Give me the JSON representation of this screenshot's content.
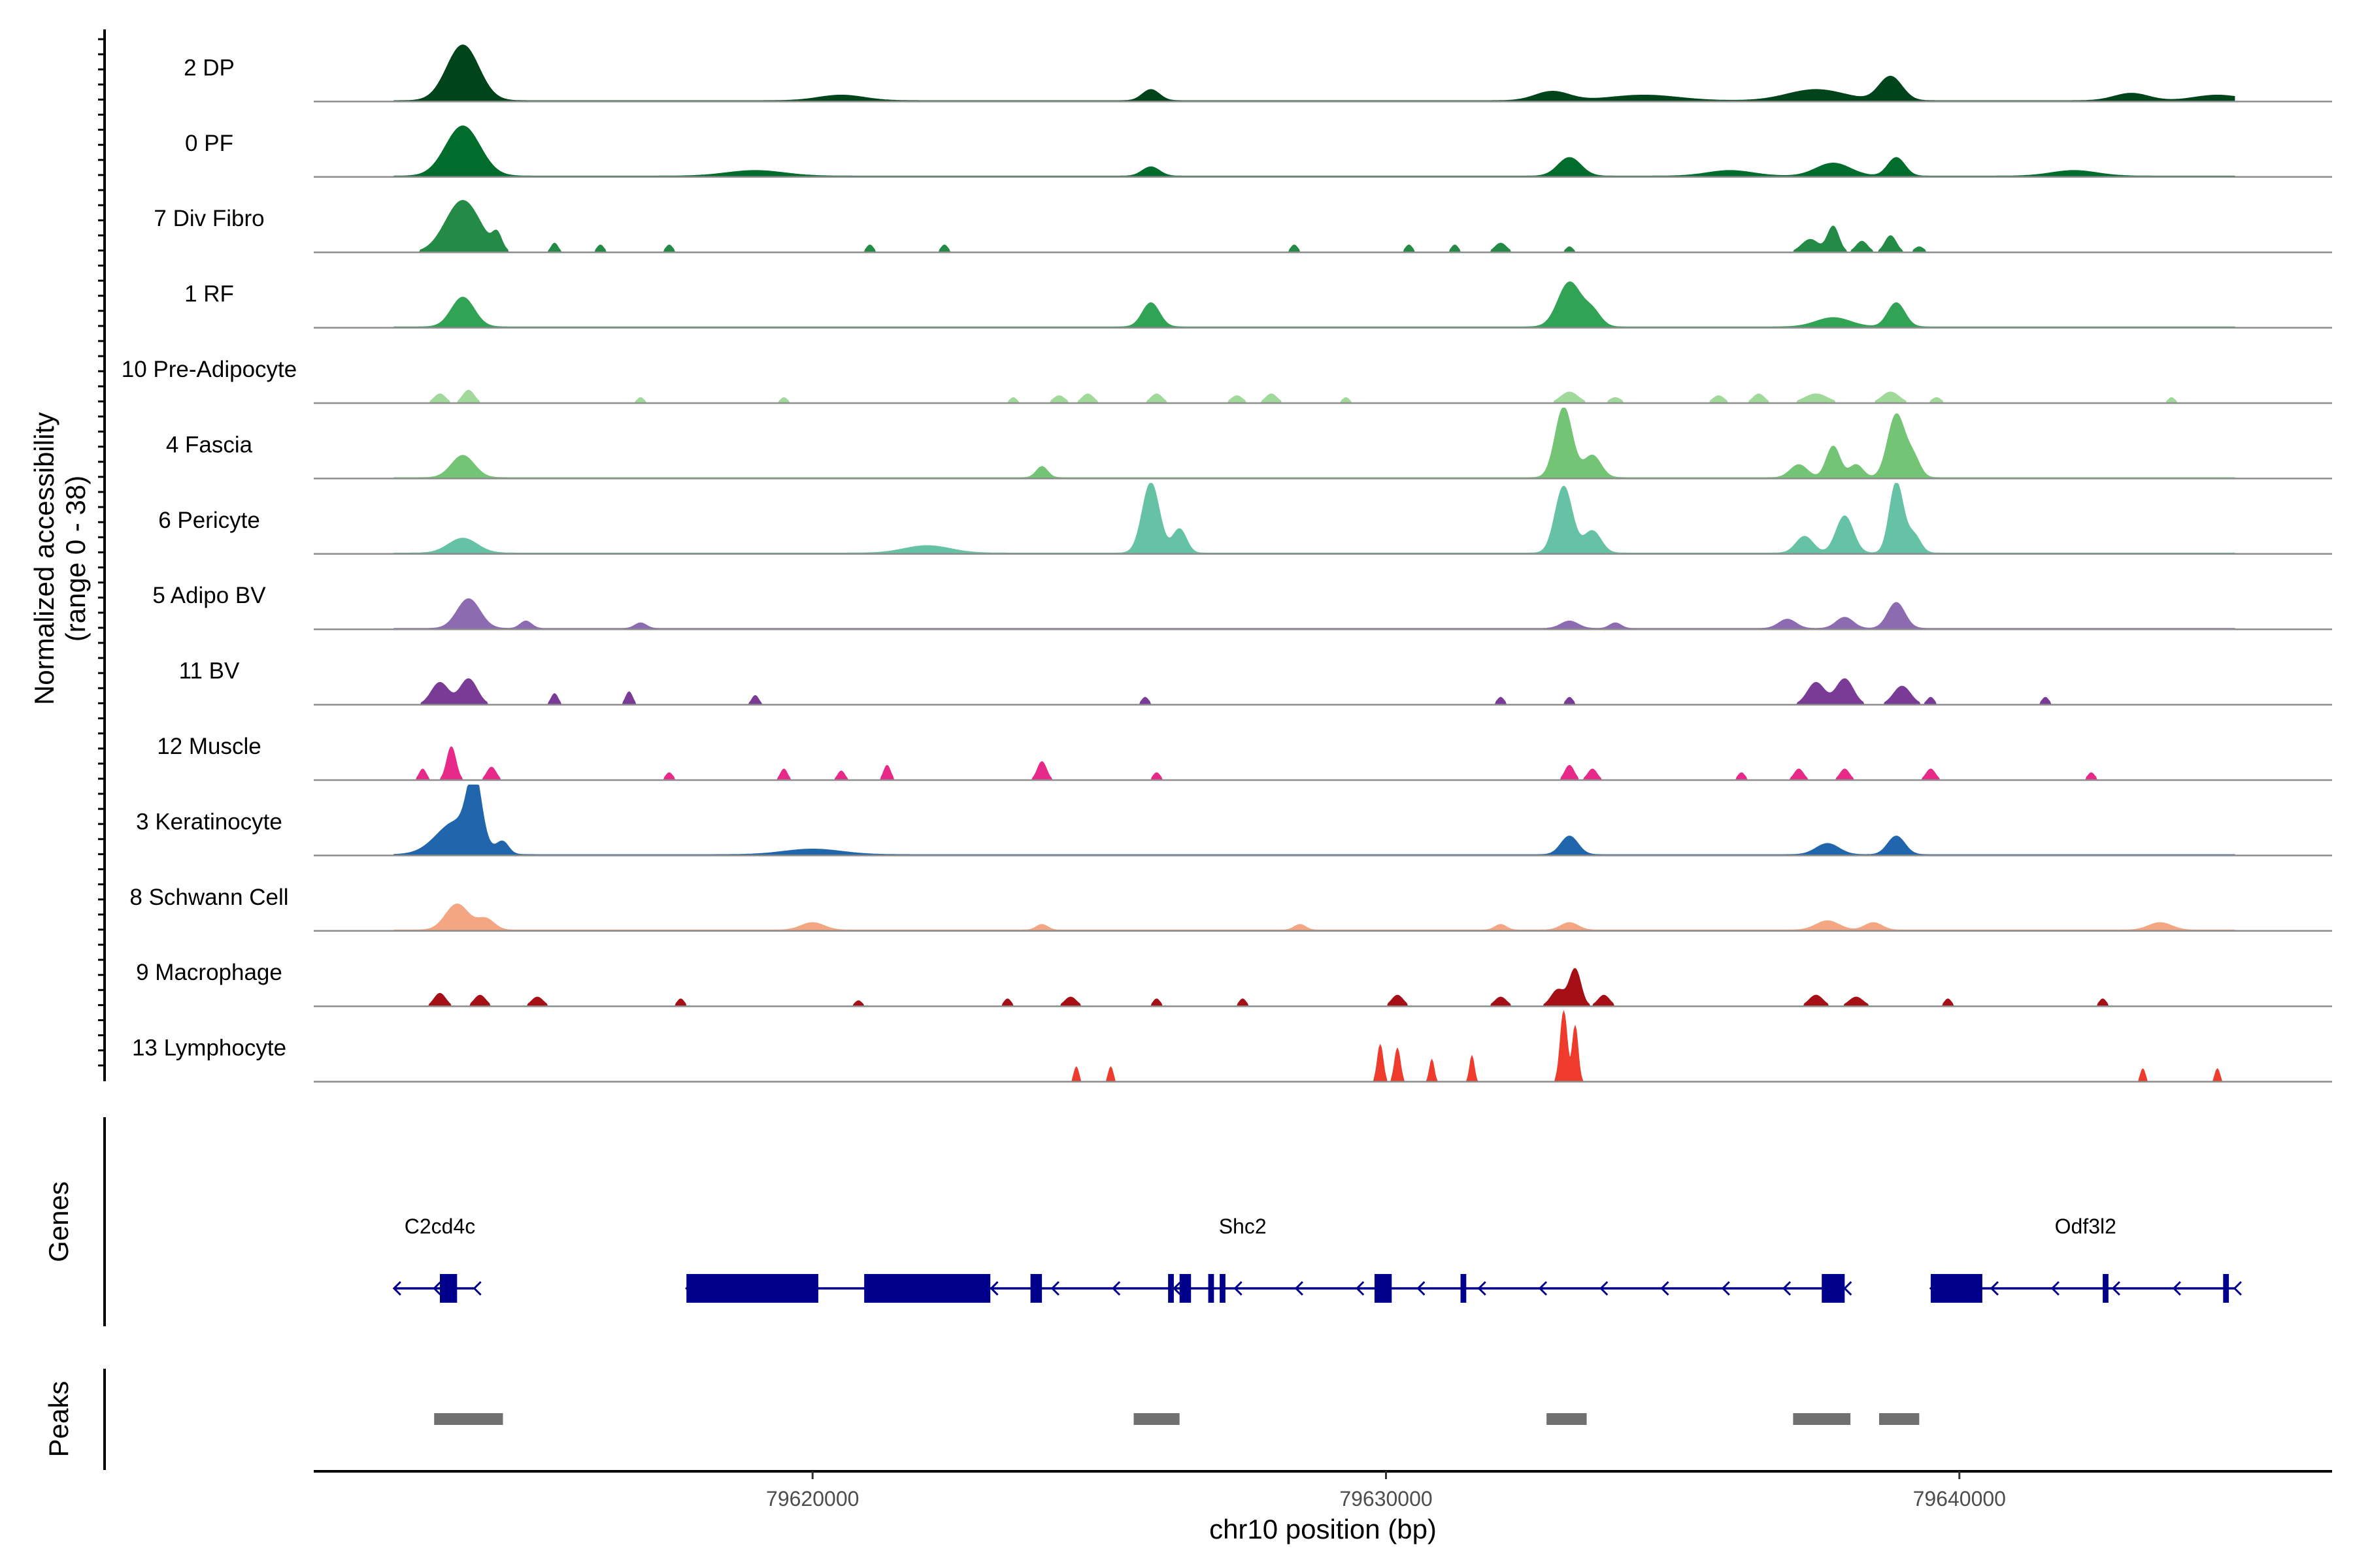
{
  "chart_data": {
    "type": "coverage_track",
    "chromosome": "chr10",
    "xlim": [
      79611300,
      79646500
    ],
    "y_axis_title_line1": "Normalized accessibility",
    "y_axis_title_line2": "(range 0 - 38)",
    "y_range": [
      0,
      38
    ],
    "x_axis_title": "chr10 position (bp)",
    "x_ticks": [
      79620000,
      79630000,
      79640000
    ],
    "x_tick_labels": [
      "79620000",
      "79630000",
      "79640000"
    ],
    "genes_panel_label": "Genes",
    "peaks_panel_label": "Peaks",
    "series": [
      {
        "name": "2 DP",
        "color": "#00441b",
        "peaks": [
          [
            79613900,
            30,
            280
          ],
          [
            79620500,
            3,
            400
          ],
          [
            79625900,
            6,
            150
          ],
          [
            79632900,
            5,
            300
          ],
          [
            79634500,
            3,
            600
          ],
          [
            79637500,
            6,
            500
          ],
          [
            79638800,
            13,
            200
          ],
          [
            79643000,
            4,
            300
          ],
          [
            79644500,
            3,
            400
          ]
        ]
      },
      {
        "name": "0 PF",
        "color": "#006d2c",
        "peaks": [
          [
            79613900,
            27,
            300
          ],
          [
            79619000,
            3,
            500
          ],
          [
            79625900,
            5,
            150
          ],
          [
            79633200,
            10,
            200
          ],
          [
            79636000,
            3,
            400
          ],
          [
            79637800,
            7,
            300
          ],
          [
            79638900,
            10,
            150
          ],
          [
            79642000,
            3,
            400
          ]
        ]
      },
      {
        "name": "7 Div Fibro",
        "color": "#238b45",
        "peaks": [
          [
            79613900,
            28,
            300
          ],
          [
            79614500,
            8,
            80
          ],
          [
            79615500,
            5,
            60
          ],
          [
            79616300,
            4,
            60
          ],
          [
            79617500,
            4,
            60
          ],
          [
            79621000,
            4,
            60
          ],
          [
            79622300,
            4,
            60
          ],
          [
            79628400,
            4,
            60
          ],
          [
            79630400,
            4,
            60
          ],
          [
            79631200,
            4,
            60
          ],
          [
            79632000,
            5,
            100
          ],
          [
            79633200,
            3,
            60
          ],
          [
            79637400,
            7,
            150
          ],
          [
            79637800,
            14,
            100
          ],
          [
            79638300,
            6,
            100
          ],
          [
            79638800,
            9,
            100
          ],
          [
            79639300,
            3,
            80
          ]
        ]
      },
      {
        "name": "1 RF",
        "color": "#31a354",
        "peaks": [
          [
            79613900,
            16,
            200
          ],
          [
            79625900,
            13,
            150
          ],
          [
            79633200,
            24,
            200
          ],
          [
            79633600,
            8,
            150
          ],
          [
            79637800,
            5,
            300
          ],
          [
            79638900,
            13,
            150
          ]
        ]
      },
      {
        "name": "10 Pre-Adipocyte",
        "color": "#a1d99b",
        "peaks": [
          [
            79612500,
            3,
            60
          ],
          [
            79613500,
            5,
            100
          ],
          [
            79614000,
            7,
            100
          ],
          [
            79617000,
            3,
            60
          ],
          [
            79619500,
            3,
            60
          ],
          [
            79623500,
            3,
            60
          ],
          [
            79624300,
            4,
            100
          ],
          [
            79624800,
            5,
            100
          ],
          [
            79626000,
            5,
            100
          ],
          [
            79627400,
            4,
            100
          ],
          [
            79628000,
            5,
            100
          ],
          [
            79629300,
            3,
            60
          ],
          [
            79633200,
            6,
            150
          ],
          [
            79634000,
            3,
            100
          ],
          [
            79635800,
            4,
            100
          ],
          [
            79636500,
            5,
            100
          ],
          [
            79637500,
            5,
            200
          ],
          [
            79638800,
            6,
            150
          ],
          [
            79639600,
            3,
            80
          ],
          [
            79643700,
            3,
            60
          ]
        ]
      },
      {
        "name": "4 Fascia",
        "color": "#74c476",
        "peaks": [
          [
            79613900,
            12,
            200
          ],
          [
            79624000,
            6,
            100
          ],
          [
            79633100,
            38,
            150
          ],
          [
            79633600,
            12,
            150
          ],
          [
            79637200,
            7,
            150
          ],
          [
            79637800,
            17,
            120
          ],
          [
            79638200,
            7,
            120
          ],
          [
            79638900,
            34,
            150
          ],
          [
            79639200,
            10,
            120
          ]
        ]
      },
      {
        "name": "6 Pericyte",
        "color": "#66c2a4",
        "peaks": [
          [
            79613900,
            8,
            250
          ],
          [
            79622000,
            4,
            400
          ],
          [
            79625900,
            38,
            150
          ],
          [
            79626400,
            13,
            120
          ],
          [
            79633100,
            36,
            150
          ],
          [
            79633600,
            12,
            150
          ],
          [
            79637300,
            9,
            150
          ],
          [
            79638000,
            20,
            150
          ],
          [
            79638900,
            38,
            120
          ],
          [
            79639200,
            10,
            120
          ]
        ]
      },
      {
        "name": "5 Adipo BV",
        "color": "#8c6bb1",
        "peaks": [
          [
            79614000,
            16,
            200
          ],
          [
            79615000,
            4,
            100
          ],
          [
            79617000,
            3,
            100
          ],
          [
            79633200,
            4,
            150
          ],
          [
            79634000,
            3,
            100
          ],
          [
            79637000,
            5,
            150
          ],
          [
            79638000,
            6,
            150
          ],
          [
            79638900,
            14,
            150
          ]
        ]
      },
      {
        "name": "11 BV",
        "color": "#7a3b96",
        "peaks": [
          [
            79613500,
            12,
            150
          ],
          [
            79614000,
            14,
            150
          ],
          [
            79615500,
            6,
            60
          ],
          [
            79616800,
            7,
            60
          ],
          [
            79619000,
            5,
            60
          ],
          [
            79625800,
            4,
            60
          ],
          [
            79632000,
            4,
            60
          ],
          [
            79633200,
            4,
            60
          ],
          [
            79637500,
            12,
            150
          ],
          [
            79638000,
            14,
            150
          ],
          [
            79639000,
            10,
            150
          ],
          [
            79639500,
            4,
            60
          ],
          [
            79641500,
            4,
            60
          ]
        ]
      },
      {
        "name": "12 Muscle",
        "color": "#e7298a",
        "peaks": [
          [
            79612400,
            6,
            60
          ],
          [
            79613200,
            6,
            60
          ],
          [
            79613700,
            18,
            80
          ],
          [
            79614400,
            7,
            80
          ],
          [
            79617500,
            4,
            60
          ],
          [
            79619500,
            6,
            60
          ],
          [
            79620500,
            5,
            60
          ],
          [
            79621300,
            8,
            60
          ],
          [
            79624000,
            10,
            80
          ],
          [
            79626000,
            4,
            60
          ],
          [
            79633200,
            8,
            80
          ],
          [
            79633600,
            6,
            80
          ],
          [
            79636200,
            4,
            60
          ],
          [
            79637200,
            6,
            80
          ],
          [
            79638000,
            6,
            80
          ],
          [
            79639500,
            6,
            80
          ],
          [
            79642300,
            4,
            60
          ]
        ]
      },
      {
        "name": "3 Keratinocyte",
        "color": "#2166ac",
        "peaks": [
          [
            79613800,
            18,
            350
          ],
          [
            79614100,
            34,
            120
          ],
          [
            79614600,
            6,
            100
          ],
          [
            79620000,
            3,
            500
          ],
          [
            79633200,
            10,
            150
          ],
          [
            79637700,
            6,
            200
          ],
          [
            79638900,
            10,
            150
          ]
        ]
      },
      {
        "name": "8 Schwann Cell",
        "color": "#f4a582",
        "peaks": [
          [
            79613800,
            14,
            200
          ],
          [
            79614300,
            6,
            150
          ],
          [
            79620000,
            4,
            200
          ],
          [
            79624000,
            3,
            100
          ],
          [
            79628500,
            3,
            100
          ],
          [
            79632000,
            3,
            100
          ],
          [
            79633200,
            4,
            150
          ],
          [
            79637700,
            5,
            200
          ],
          [
            79638500,
            4,
            150
          ],
          [
            79643500,
            4,
            200
          ]
        ]
      },
      {
        "name": "9 Macrophage",
        "color": "#a50f15",
        "peaks": [
          [
            79612400,
            3,
            60
          ],
          [
            79613500,
            7,
            100
          ],
          [
            79614200,
            6,
            100
          ],
          [
            79615200,
            5,
            100
          ],
          [
            79617700,
            4,
            60
          ],
          [
            79620800,
            3,
            60
          ],
          [
            79623400,
            4,
            60
          ],
          [
            79624500,
            5,
            100
          ],
          [
            79626000,
            4,
            60
          ],
          [
            79627500,
            4,
            60
          ],
          [
            79630200,
            6,
            100
          ],
          [
            79632000,
            5,
            100
          ],
          [
            79633000,
            9,
            120
          ],
          [
            79633300,
            20,
            100
          ],
          [
            79633800,
            6,
            100
          ],
          [
            79637500,
            6,
            120
          ],
          [
            79638200,
            5,
            120
          ],
          [
            79639800,
            4,
            60
          ],
          [
            79642500,
            4,
            60
          ]
        ]
      },
      {
        "name": "13 Lymphocyte",
        "color": "#ef3b2c",
        "peaks": [
          [
            79624600,
            8,
            40
          ],
          [
            79625200,
            8,
            40
          ],
          [
            79629900,
            20,
            50
          ],
          [
            79630200,
            18,
            50
          ],
          [
            79630800,
            12,
            40
          ],
          [
            79631500,
            14,
            40
          ],
          [
            79633100,
            38,
            60
          ],
          [
            79633300,
            30,
            50
          ],
          [
            79643200,
            7,
            40
          ],
          [
            79644500,
            7,
            40
          ]
        ]
      }
    ],
    "genes": [
      {
        "name": "C2cd4c",
        "strand": "-",
        "start": 79612700,
        "end": 79614100,
        "label_pos": 79613500,
        "exons": [
          [
            79613500,
            79613800
          ]
        ]
      },
      {
        "name": "Shc2",
        "strand": "-",
        "start": 79617800,
        "end": 79638000,
        "label_pos": 79627500,
        "exons": [
          [
            79617800,
            79620100
          ],
          [
            79620900,
            79623100
          ],
          [
            79623800,
            79624000
          ],
          [
            79626200,
            79626300
          ],
          [
            79626400,
            79626600
          ],
          [
            79626900,
            79627000
          ],
          [
            79627100,
            79627200
          ],
          [
            79629800,
            79630100
          ],
          [
            79631300,
            79631400
          ],
          [
            79637600,
            79638000
          ]
        ]
      },
      {
        "name": "Odf3l2",
        "strand": "-",
        "start": 79639500,
        "end": 79644800,
        "label_pos": 79642200,
        "exons": [
          [
            79639500,
            79640400
          ],
          [
            79642500,
            79642600
          ],
          [
            79644600,
            79644700
          ]
        ]
      }
    ],
    "peak_regions": [
      [
        79613400,
        79614600
      ],
      [
        79625600,
        79626400
      ],
      [
        79632800,
        79633500
      ],
      [
        79637100,
        79638100
      ],
      [
        79638600,
        79639300
      ]
    ]
  }
}
